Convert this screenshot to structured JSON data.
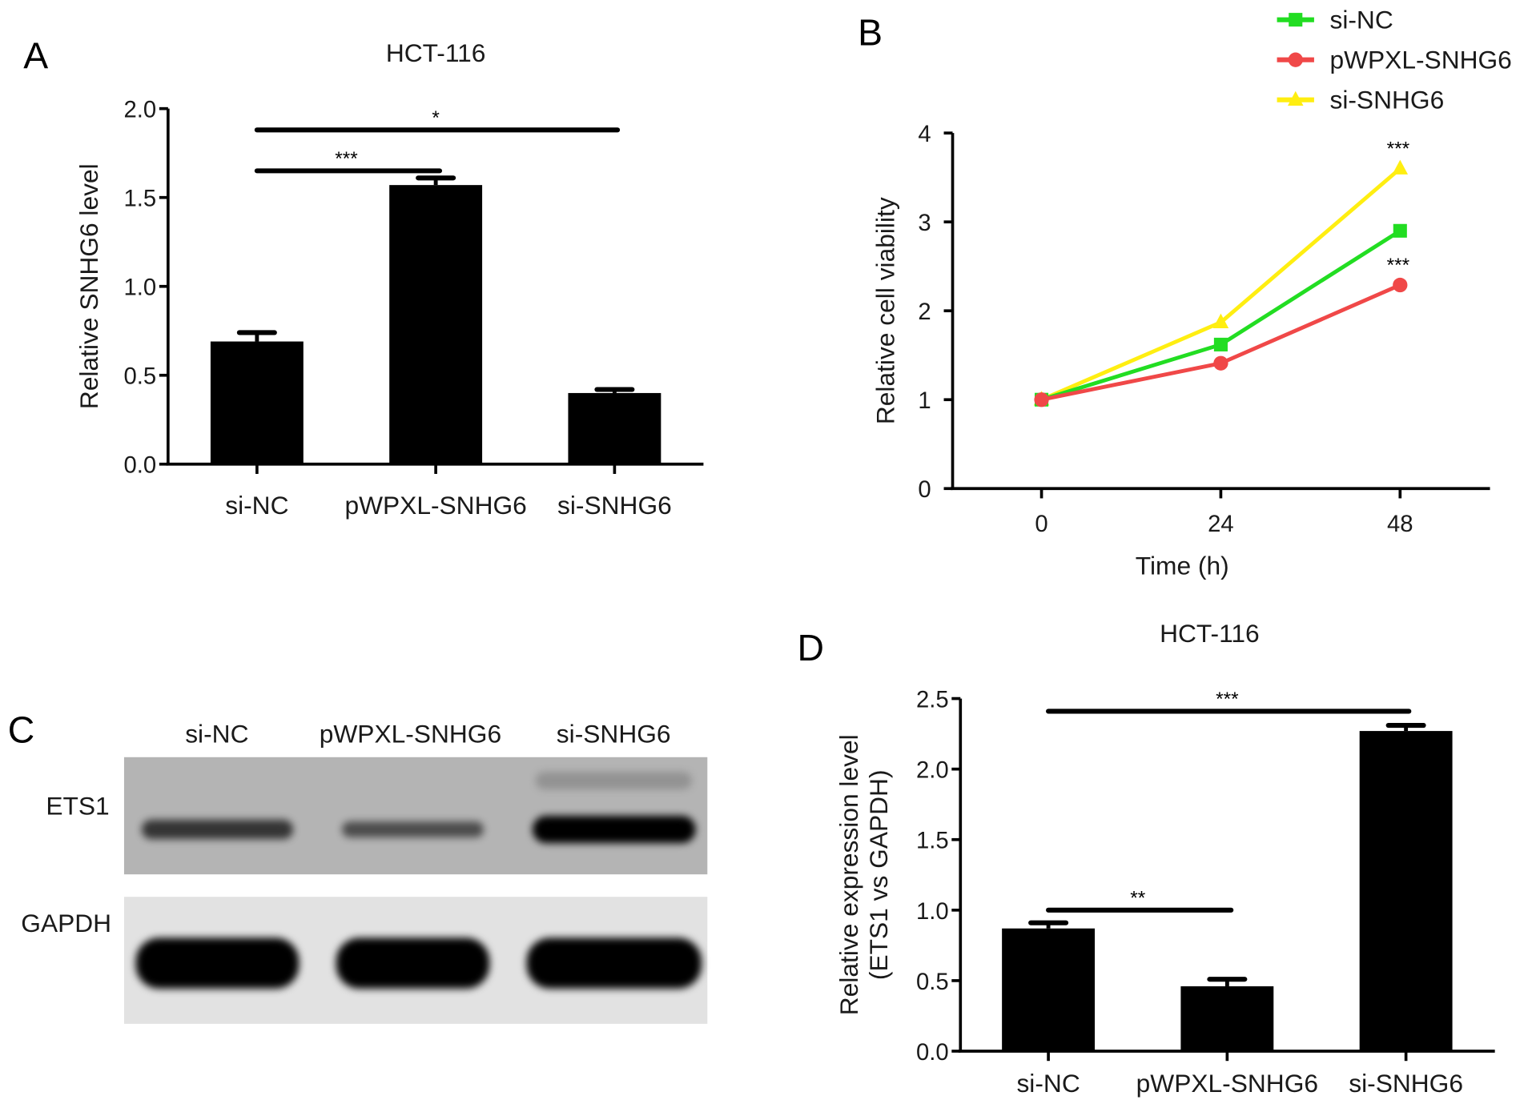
{
  "panels": {
    "A": "A",
    "B": "B",
    "C": "C",
    "D": "D"
  },
  "blot": {
    "lanes": [
      "si-NC",
      "pWPXL-SNHG6",
      "si-SNHG6"
    ],
    "rows": [
      "ETS1",
      "GAPDH"
    ],
    "ets1_intensity": [
      0.55,
      0.35,
      1.0
    ],
    "gapdh_intensity": [
      1.0,
      1.0,
      1.0
    ]
  },
  "chart_data": [
    {
      "panel": "A",
      "type": "bar",
      "title": "HCT-116",
      "ylabel": "Relative SNHG6 level",
      "ylabel2": "",
      "xlabel": "",
      "categories": [
        "si-NC",
        "pWPXL-SNHG6",
        "si-SNHG6"
      ],
      "values": [
        0.69,
        1.57,
        0.4
      ],
      "error_upper": [
        0.74,
        1.61,
        0.42
      ],
      "ylim": [
        0,
        2.0
      ],
      "yticks": [
        "0.0",
        "0.5",
        "1.0",
        "1.5",
        "2.0"
      ],
      "bar_color": "#000000",
      "significance": [
        {
          "from": 0,
          "to": 1,
          "y": 1.65,
          "label": "***"
        },
        {
          "from": 0,
          "to": 2,
          "y": 1.88,
          "label": "*"
        }
      ]
    },
    {
      "panel": "B",
      "type": "line",
      "title": "",
      "ylabel": "Relative cell viability",
      "xlabel": "Time (h)",
      "x": [
        0,
        24,
        48
      ],
      "xticks": [
        "0",
        "24",
        "48"
      ],
      "ylim": [
        0,
        4
      ],
      "yticks": [
        "0",
        "1",
        "2",
        "3",
        "4"
      ],
      "legend_position": "top-right",
      "series": [
        {
          "name": "si-NC",
          "values": [
            1.0,
            1.62,
            2.9
          ],
          "color": "#22dd22",
          "marker": "square"
        },
        {
          "name": "pWPXL-SNHG6",
          "values": [
            1.0,
            1.41,
            2.29
          ],
          "color": "#f04848",
          "marker": "circle"
        },
        {
          "name": "si-SNHG6",
          "values": [
            1.0,
            1.87,
            3.6
          ],
          "color": "#ffee11",
          "marker": "triangle"
        }
      ],
      "annotations": [
        {
          "x": 48,
          "y": 3.6,
          "label": "***"
        },
        {
          "x": 48,
          "y": 2.29,
          "label": "***"
        }
      ]
    },
    {
      "panel": "D",
      "type": "bar",
      "title": "HCT-116",
      "ylabel": "Relative expression level",
      "ylabel2": "(ETS1 vs GAPDH)",
      "xlabel": "",
      "categories": [
        "si-NC",
        "pWPXL-SNHG6",
        "si-SNHG6"
      ],
      "values": [
        0.87,
        0.46,
        2.27
      ],
      "error_upper": [
        0.91,
        0.51,
        2.31
      ],
      "ylim": [
        0,
        2.5
      ],
      "yticks": [
        "0.0",
        "0.5",
        "1.0",
        "1.5",
        "2.0",
        "2.5"
      ],
      "bar_color": "#000000",
      "significance": [
        {
          "from": 0,
          "to": 1,
          "y": 1.0,
          "label": "**"
        },
        {
          "from": 0,
          "to": 2,
          "y": 2.41,
          "label": "***"
        }
      ]
    }
  ]
}
